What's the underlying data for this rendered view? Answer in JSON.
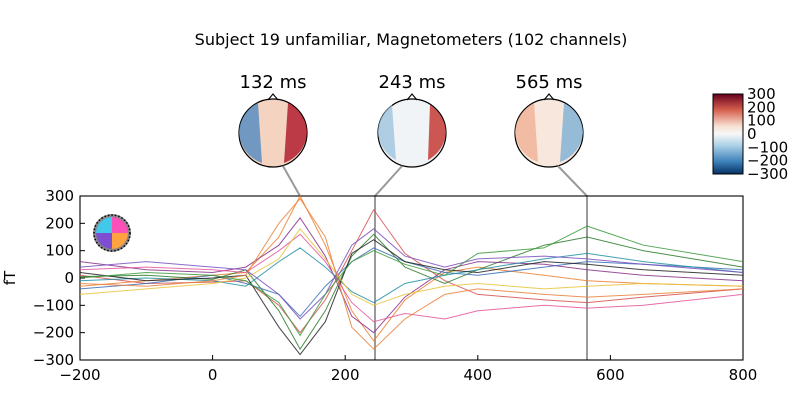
{
  "title": "Subject 19 unfamiliar, Magnetometers (102 channels)",
  "chart_data": {
    "type": "line",
    "title": "Subject 19 unfamiliar, Magnetometers (102 channels)",
    "xlabel": "",
    "ylabel": "fT",
    "xlim": [
      -200,
      800
    ],
    "ylim": [
      -300,
      300
    ],
    "x_ticks": [
      "−200",
      "0",
      "200",
      "400",
      "600",
      "800"
    ],
    "y_ticks": [
      "300",
      "200",
      "100",
      "0",
      "−100",
      "−200",
      "−300"
    ],
    "n_channels": 102,
    "grid": false,
    "topomap_times_ms": [
      132,
      243,
      565
    ],
    "topomap_labels": [
      "132 ms",
      "243 ms",
      "565 ms"
    ],
    "colorbar": {
      "range": [
        -300,
        300
      ],
      "ticks": [
        "300",
        "200",
        "100",
        "0",
        "−100",
        "−200",
        "−300"
      ],
      "colormap": "RdBu_r"
    },
    "series": [
      {
        "color": "#d64f4f",
        "points": [
          [
            -200,
            10
          ],
          [
            -100,
            -20
          ],
          [
            0,
            -15
          ],
          [
            50,
            -10
          ],
          [
            100,
            -100
          ],
          [
            132,
            -200
          ],
          [
            170,
            -80
          ],
          [
            210,
            100
          ],
          [
            243,
            250
          ],
          [
            290,
            90
          ],
          [
            350,
            -10
          ],
          [
            400,
            -60
          ],
          [
            500,
            -80
          ],
          [
            565,
            -90
          ],
          [
            650,
            -70
          ],
          [
            800,
            -40
          ]
        ]
      },
      {
        "color": "#f07f2f",
        "points": [
          [
            -200,
            -30
          ],
          [
            -100,
            -10
          ],
          [
            0,
            10
          ],
          [
            50,
            20
          ],
          [
            100,
            150
          ],
          [
            132,
            300
          ],
          [
            170,
            120
          ],
          [
            210,
            -120
          ],
          [
            243,
            -230
          ],
          [
            290,
            -80
          ],
          [
            350,
            20
          ],
          [
            400,
            40
          ],
          [
            500,
            10
          ],
          [
            565,
            -10
          ],
          [
            650,
            -20
          ],
          [
            800,
            -30
          ]
        ]
      },
      {
        "color": "#2b7a2b",
        "points": [
          [
            -200,
            5
          ],
          [
            -100,
            10
          ],
          [
            0,
            -5
          ],
          [
            50,
            30
          ],
          [
            100,
            -120
          ],
          [
            132,
            -260
          ],
          [
            170,
            -120
          ],
          [
            210,
            80
          ],
          [
            243,
            160
          ],
          [
            290,
            40
          ],
          [
            350,
            -20
          ],
          [
            400,
            30
          ],
          [
            500,
            120
          ],
          [
            565,
            150
          ],
          [
            650,
            100
          ],
          [
            800,
            40
          ]
        ]
      },
      {
        "color": "#8a2f8a",
        "points": [
          [
            -200,
            60
          ],
          [
            -100,
            30
          ],
          [
            0,
            20
          ],
          [
            50,
            40
          ],
          [
            100,
            120
          ],
          [
            132,
            220
          ],
          [
            170,
            80
          ],
          [
            210,
            -140
          ],
          [
            243,
            -200
          ],
          [
            290,
            -70
          ],
          [
            350,
            30
          ],
          [
            400,
            60
          ],
          [
            500,
            50
          ],
          [
            565,
            30
          ],
          [
            650,
            10
          ],
          [
            800,
            -10
          ]
        ]
      },
      {
        "color": "#3a6fb5",
        "points": [
          [
            -200,
            -40
          ],
          [
            -100,
            -20
          ],
          [
            0,
            10
          ],
          [
            50,
            -20
          ],
          [
            100,
            -60
          ],
          [
            132,
            -140
          ],
          [
            170,
            -30
          ],
          [
            210,
            60
          ],
          [
            243,
            110
          ],
          [
            290,
            60
          ],
          [
            350,
            20
          ],
          [
            400,
            10
          ],
          [
            500,
            40
          ],
          [
            565,
            60
          ],
          [
            650,
            50
          ],
          [
            800,
            30
          ]
        ]
      },
      {
        "color": "#e4559a",
        "points": [
          [
            -200,
            30
          ],
          [
            -100,
            40
          ],
          [
            0,
            30
          ],
          [
            50,
            20
          ],
          [
            100,
            100
          ],
          [
            132,
            160
          ],
          [
            170,
            60
          ],
          [
            210,
            -90
          ],
          [
            243,
            -160
          ],
          [
            290,
            -130
          ],
          [
            350,
            -150
          ],
          [
            400,
            -120
          ],
          [
            500,
            -100
          ],
          [
            565,
            -110
          ],
          [
            650,
            -100
          ],
          [
            800,
            -60
          ]
        ]
      },
      {
        "color": "#1f8fa3",
        "points": [
          [
            -200,
            -10
          ],
          [
            -100,
            0
          ],
          [
            0,
            -10
          ],
          [
            50,
            -30
          ],
          [
            100,
            60
          ],
          [
            132,
            110
          ],
          [
            170,
            40
          ],
          [
            210,
            -50
          ],
          [
            243,
            -90
          ],
          [
            290,
            -20
          ],
          [
            350,
            10
          ],
          [
            400,
            30
          ],
          [
            500,
            70
          ],
          [
            565,
            90
          ],
          [
            650,
            60
          ],
          [
            800,
            20
          ]
        ]
      },
      {
        "color": "#222222",
        "points": [
          [
            -200,
            20
          ],
          [
            -100,
            -10
          ],
          [
            0,
            0
          ],
          [
            50,
            10
          ],
          [
            100,
            -180
          ],
          [
            132,
            -280
          ],
          [
            170,
            -160
          ],
          [
            210,
            90
          ],
          [
            243,
            140
          ],
          [
            290,
            60
          ],
          [
            350,
            30
          ],
          [
            400,
            20
          ],
          [
            500,
            60
          ],
          [
            565,
            50
          ],
          [
            650,
            30
          ],
          [
            800,
            10
          ]
        ]
      },
      {
        "color": "#e7c33a",
        "points": [
          [
            -200,
            -60
          ],
          [
            -100,
            -40
          ],
          [
            0,
            -20
          ],
          [
            50,
            0
          ],
          [
            100,
            70
          ],
          [
            132,
            180
          ],
          [
            170,
            70
          ],
          [
            210,
            -60
          ],
          [
            243,
            -100
          ],
          [
            290,
            -60
          ],
          [
            350,
            -30
          ],
          [
            400,
            -20
          ],
          [
            500,
            -40
          ],
          [
            565,
            -30
          ],
          [
            650,
            -20
          ],
          [
            800,
            -30
          ]
        ]
      },
      {
        "color": "#7a4fbf",
        "points": [
          [
            -200,
            40
          ],
          [
            -100,
            60
          ],
          [
            0,
            40
          ],
          [
            50,
            30
          ],
          [
            100,
            -60
          ],
          [
            132,
            -150
          ],
          [
            170,
            -60
          ],
          [
            210,
            120
          ],
          [
            243,
            180
          ],
          [
            290,
            80
          ],
          [
            350,
            40
          ],
          [
            400,
            70
          ],
          [
            500,
            80
          ],
          [
            565,
            70
          ],
          [
            650,
            50
          ],
          [
            800,
            20
          ]
        ]
      },
      {
        "color": "#e8813a",
        "points": [
          [
            -200,
            -20
          ],
          [
            -100,
            -30
          ],
          [
            0,
            -10
          ],
          [
            50,
            10
          ],
          [
            100,
            200
          ],
          [
            132,
            290
          ],
          [
            170,
            150
          ],
          [
            210,
            -180
          ],
          [
            243,
            -260
          ],
          [
            290,
            -150
          ],
          [
            350,
            -60
          ],
          [
            400,
            -40
          ],
          [
            500,
            -60
          ],
          [
            565,
            -70
          ],
          [
            650,
            -60
          ],
          [
            800,
            -40
          ]
        ]
      },
      {
        "color": "#3c9a3c",
        "points": [
          [
            -200,
            0
          ],
          [
            -100,
            20
          ],
          [
            0,
            10
          ],
          [
            50,
            -10
          ],
          [
            100,
            -90
          ],
          [
            132,
            -210
          ],
          [
            170,
            -60
          ],
          [
            210,
            60
          ],
          [
            243,
            100
          ],
          [
            290,
            50
          ],
          [
            350,
            10
          ],
          [
            400,
            90
          ],
          [
            500,
            110
          ],
          [
            565,
            190
          ],
          [
            650,
            120
          ],
          [
            800,
            60
          ]
        ]
      }
    ]
  }
}
